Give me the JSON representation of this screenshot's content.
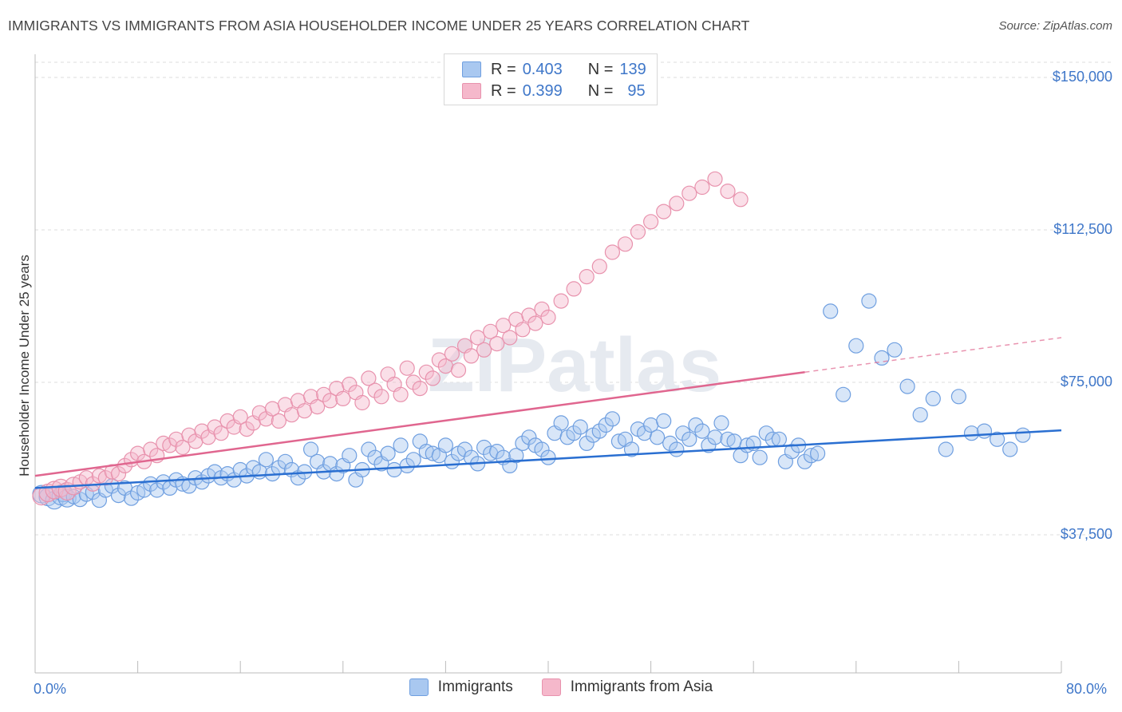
{
  "title": "IMMIGRANTS VS IMMIGRANTS FROM ASIA HOUSEHOLDER INCOME UNDER 25 YEARS CORRELATION CHART",
  "source": "Source: ZipAtlas.com",
  "watermark": "ZIPatlas",
  "legend": {
    "r_label": "R =",
    "n_label": "N =",
    "rows": [
      {
        "r": "0.403",
        "n": "139",
        "color": "#a9c8f0"
      },
      {
        "r": "0.399",
        "n": "95",
        "color": "#f5b8cb"
      }
    ]
  },
  "colors": {
    "blue_fill": "#a9c8f0",
    "blue_stroke": "#6f9fe0",
    "blue_line": "#2a6fd1",
    "pink_fill": "#f5b8cb",
    "pink_stroke": "#e892ad",
    "pink_line": "#e0668f",
    "axis_text": "#3f77c9",
    "grid": "#dcdcdc"
  },
  "chart_data": {
    "type": "scatter",
    "xlabel": "",
    "ylabel": "Householder Income Under 25 years",
    "x_tick_labels": [
      "0.0%",
      "80.0%"
    ],
    "y_tick_labels": [
      "$150,000",
      "$112,500",
      "$75,000",
      "$37,500"
    ],
    "y_ticks": [
      150000,
      112500,
      75000,
      37500
    ],
    "xlim": [
      0,
      80
    ],
    "ylim": [
      15000,
      155000
    ],
    "grid": true,
    "legend_position": "top-center",
    "series": [
      {
        "name": "Immigrants",
        "trend": {
          "x": [
            0,
            80
          ],
          "y": [
            49000,
            63200
          ]
        },
        "points": [
          [
            0.5,
            47500
          ],
          [
            1.0,
            46800
          ],
          [
            1.5,
            46000
          ],
          [
            2.0,
            47000
          ],
          [
            2.2,
            47800
          ],
          [
            2.5,
            46500
          ],
          [
            3.0,
            46900
          ],
          [
            3.5,
            46200
          ],
          [
            4.0,
            47500
          ],
          [
            4.5,
            48000
          ],
          [
            5.0,
            46000
          ],
          [
            5.5,
            48500
          ],
          [
            6.0,
            49500
          ],
          [
            6.5,
            47200
          ],
          [
            7.0,
            49000
          ],
          [
            7.5,
            46500
          ],
          [
            8.0,
            47800
          ],
          [
            8.5,
            48500
          ],
          [
            9.0,
            50000
          ],
          [
            9.5,
            48500
          ],
          [
            10.0,
            50500
          ],
          [
            10.5,
            49000
          ],
          [
            11.0,
            51000
          ],
          [
            11.5,
            50000
          ],
          [
            12.0,
            49500
          ],
          [
            12.5,
            51500
          ],
          [
            13.0,
            50500
          ],
          [
            13.5,
            52000
          ],
          [
            14.0,
            53000
          ],
          [
            14.5,
            51500
          ],
          [
            15.0,
            52500
          ],
          [
            15.5,
            51000
          ],
          [
            16.0,
            53500
          ],
          [
            16.5,
            52000
          ],
          [
            17.0,
            54000
          ],
          [
            17.5,
            53000
          ],
          [
            18.0,
            56000
          ],
          [
            18.5,
            52500
          ],
          [
            19.0,
            54000
          ],
          [
            19.5,
            55500
          ],
          [
            20.0,
            53500
          ],
          [
            20.5,
            51500
          ],
          [
            21.0,
            53000
          ],
          [
            21.5,
            58500
          ],
          [
            22.0,
            55500
          ],
          [
            22.5,
            53000
          ],
          [
            23.0,
            55000
          ],
          [
            23.5,
            52500
          ],
          [
            24.0,
            54500
          ],
          [
            24.5,
            57000
          ],
          [
            25.0,
            51000
          ],
          [
            25.5,
            53500
          ],
          [
            26.0,
            58500
          ],
          [
            26.5,
            56500
          ],
          [
            27.0,
            55000
          ],
          [
            27.5,
            57500
          ],
          [
            28.0,
            53500
          ],
          [
            28.5,
            59500
          ],
          [
            29.0,
            54500
          ],
          [
            29.5,
            56000
          ],
          [
            30.0,
            60500
          ],
          [
            30.5,
            58000
          ],
          [
            31.0,
            57500
          ],
          [
            31.5,
            57000
          ],
          [
            32.0,
            59500
          ],
          [
            32.5,
            55500
          ],
          [
            33.0,
            57500
          ],
          [
            33.5,
            58500
          ],
          [
            34.0,
            56500
          ],
          [
            34.5,
            55000
          ],
          [
            35.0,
            59000
          ],
          [
            35.5,
            57500
          ],
          [
            36.0,
            58000
          ],
          [
            36.5,
            56500
          ],
          [
            37.0,
            54500
          ],
          [
            37.5,
            57000
          ],
          [
            38.0,
            60000
          ],
          [
            38.5,
            61500
          ],
          [
            39.0,
            59500
          ],
          [
            39.5,
            58500
          ],
          [
            40.0,
            56500
          ],
          [
            40.5,
            62500
          ],
          [
            41.0,
            65000
          ],
          [
            41.5,
            61500
          ],
          [
            42.0,
            62500
          ],
          [
            42.5,
            64000
          ],
          [
            43.0,
            60000
          ],
          [
            43.5,
            62000
          ],
          [
            44.0,
            63000
          ],
          [
            44.5,
            64500
          ],
          [
            45.0,
            66000
          ],
          [
            45.5,
            60500
          ],
          [
            46.0,
            61000
          ],
          [
            46.5,
            58500
          ],
          [
            47.0,
            63500
          ],
          [
            47.5,
            62500
          ],
          [
            48.0,
            64500
          ],
          [
            48.5,
            61500
          ],
          [
            49.0,
            65500
          ],
          [
            49.5,
            60000
          ],
          [
            50.0,
            58500
          ],
          [
            50.5,
            62500
          ],
          [
            51.0,
            61000
          ],
          [
            51.5,
            64500
          ],
          [
            52.0,
            63000
          ],
          [
            52.5,
            59500
          ],
          [
            53.0,
            61500
          ],
          [
            53.5,
            65000
          ],
          [
            54.0,
            61000
          ],
          [
            54.5,
            60500
          ],
          [
            55.0,
            57000
          ],
          [
            55.5,
            59500
          ],
          [
            56.0,
            60000
          ],
          [
            56.5,
            56500
          ],
          [
            57.0,
            62500
          ],
          [
            57.5,
            61000
          ],
          [
            58.0,
            61000
          ],
          [
            58.5,
            55500
          ],
          [
            59.0,
            58000
          ],
          [
            59.5,
            59500
          ],
          [
            60.0,
            55500
          ],
          [
            60.5,
            57000
          ],
          [
            61.0,
            57500
          ],
          [
            62.0,
            92500
          ],
          [
            63.0,
            72000
          ],
          [
            64.0,
            84000
          ],
          [
            65.0,
            95000
          ],
          [
            66.0,
            81000
          ],
          [
            67.0,
            83000
          ],
          [
            68.0,
            74000
          ],
          [
            69.0,
            67000
          ],
          [
            70.0,
            71000
          ],
          [
            71.0,
            58500
          ],
          [
            72.0,
            71500
          ],
          [
            73.0,
            62500
          ],
          [
            74.0,
            63000
          ],
          [
            75.0,
            61000
          ],
          [
            76.0,
            58500
          ],
          [
            77.0,
            62000
          ]
        ]
      },
      {
        "name": "Immigrants from Asia",
        "trend": {
          "x": [
            0,
            60
          ],
          "y": [
            52000,
            77500
          ]
        },
        "trend_dashed": {
          "x": [
            60,
            80
          ],
          "y": [
            77500,
            86000
          ]
        },
        "points": [
          [
            0.5,
            47000
          ],
          [
            1.0,
            47800
          ],
          [
            1.5,
            48500
          ],
          [
            2.0,
            49000
          ],
          [
            2.5,
            48200
          ],
          [
            3.0,
            49500
          ],
          [
            3.5,
            50500
          ],
          [
            4.0,
            51500
          ],
          [
            4.5,
            50000
          ],
          [
            5.0,
            52000
          ],
          [
            5.5,
            51500
          ],
          [
            6.0,
            53000
          ],
          [
            6.5,
            52500
          ],
          [
            7.0,
            54500
          ],
          [
            7.5,
            56000
          ],
          [
            8.0,
            57500
          ],
          [
            8.5,
            55500
          ],
          [
            9.0,
            58500
          ],
          [
            9.5,
            57000
          ],
          [
            10.0,
            60000
          ],
          [
            10.5,
            59500
          ],
          [
            11.0,
            61000
          ],
          [
            11.5,
            59000
          ],
          [
            12.0,
            62000
          ],
          [
            12.5,
            60500
          ],
          [
            13.0,
            63000
          ],
          [
            13.5,
            61500
          ],
          [
            14.0,
            64000
          ],
          [
            14.5,
            62500
          ],
          [
            15.0,
            65500
          ],
          [
            15.5,
            64000
          ],
          [
            16.0,
            66500
          ],
          [
            16.5,
            63500
          ],
          [
            17.0,
            65000
          ],
          [
            17.5,
            67500
          ],
          [
            18.0,
            66000
          ],
          [
            18.5,
            68500
          ],
          [
            19.0,
            65500
          ],
          [
            19.5,
            69500
          ],
          [
            20.0,
            67000
          ],
          [
            20.5,
            70500
          ],
          [
            21.0,
            68000
          ],
          [
            21.5,
            71500
          ],
          [
            22.0,
            69000
          ],
          [
            22.5,
            72000
          ],
          [
            23.0,
            70500
          ],
          [
            23.5,
            73500
          ],
          [
            24.0,
            71000
          ],
          [
            24.5,
            74500
          ],
          [
            25.0,
            72500
          ],
          [
            25.5,
            70000
          ],
          [
            26.0,
            76000
          ],
          [
            26.5,
            73000
          ],
          [
            27.0,
            71500
          ],
          [
            27.5,
            77000
          ],
          [
            28.0,
            74500
          ],
          [
            28.5,
            72000
          ],
          [
            29.0,
            78500
          ],
          [
            29.5,
            75000
          ],
          [
            30.0,
            73500
          ],
          [
            30.5,
            77500
          ],
          [
            31.0,
            76000
          ],
          [
            31.5,
            80500
          ],
          [
            32.0,
            79000
          ],
          [
            32.5,
            82000
          ],
          [
            33.0,
            78000
          ],
          [
            33.5,
            84000
          ],
          [
            34.0,
            81500
          ],
          [
            34.5,
            86000
          ],
          [
            35.0,
            83000
          ],
          [
            35.5,
            87500
          ],
          [
            36.0,
            84500
          ],
          [
            36.5,
            89000
          ],
          [
            37.0,
            86000
          ],
          [
            37.5,
            90500
          ],
          [
            38.0,
            88000
          ],
          [
            38.5,
            91500
          ],
          [
            39.0,
            89500
          ],
          [
            39.5,
            93000
          ],
          [
            40.0,
            91000
          ],
          [
            41.0,
            95000
          ],
          [
            42.0,
            98000
          ],
          [
            43.0,
            101000
          ],
          [
            44.0,
            103500
          ],
          [
            45.0,
            107000
          ],
          [
            46.0,
            109000
          ],
          [
            47.0,
            112000
          ],
          [
            48.0,
            114500
          ],
          [
            49.0,
            117000
          ],
          [
            50.0,
            119000
          ],
          [
            51.0,
            121500
          ],
          [
            52.0,
            123000
          ],
          [
            53.0,
            125000
          ],
          [
            54.0,
            122000
          ],
          [
            55.0,
            120000
          ]
        ]
      }
    ]
  }
}
